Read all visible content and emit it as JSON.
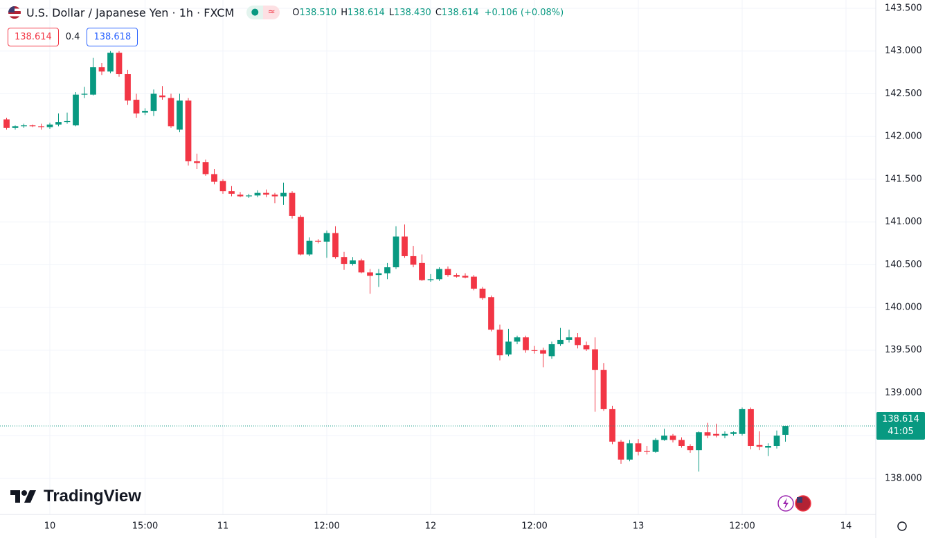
{
  "header": {
    "title": "U.S. Dollar / Japanese Yen · 1h · FXCM",
    "ohlc": [
      {
        "label": "O",
        "value": "138.510"
      },
      {
        "label": "H",
        "value": "138.614"
      },
      {
        "label": "L",
        "value": "138.430"
      },
      {
        "label": "C",
        "value": "138.614"
      }
    ],
    "change": "+0.106 (+0.08%)"
  },
  "quote": {
    "bid": "138.614",
    "spread": "0.4",
    "ask": "138.618"
  },
  "watermark": "TradingView",
  "chart_data": {
    "type": "candlestick",
    "up_color": "#089981",
    "down_color": "#f23645",
    "x": [
      -1,
      0,
      1,
      2,
      3,
      4,
      5,
      6,
      7,
      8,
      9,
      10,
      11,
      12,
      13,
      14,
      15,
      16,
      17,
      18,
      19,
      20,
      21,
      22,
      23,
      24,
      25,
      26,
      27,
      28,
      29,
      30,
      31,
      32,
      33,
      34,
      35,
      36,
      37,
      38,
      39,
      40,
      41,
      42,
      43,
      44,
      45,
      46,
      47,
      48,
      49,
      50,
      51,
      52,
      53,
      54,
      55,
      56,
      57,
      58,
      59,
      60,
      61,
      62,
      63,
      64,
      65,
      66,
      67,
      68,
      69,
      70,
      71,
      72,
      73,
      74,
      75,
      76,
      77,
      78,
      79,
      80,
      81,
      82,
      83,
      84,
      85,
      86,
      87,
      88,
      89
    ],
    "open": [
      142.2,
      142.1,
      142.12,
      142.13,
      142.12,
      142.11,
      142.14,
      142.17,
      142.13,
      142.49,
      142.49,
      142.81,
      142.76,
      142.98,
      142.73,
      142.43,
      142.28,
      142.3,
      142.48,
      142.45,
      142.08,
      142.42,
      141.71,
      141.7,
      141.56,
      141.48,
      141.36,
      141.32,
      141.3,
      141.31,
      141.34,
      141.32,
      141.3,
      141.34,
      141.06,
      140.62,
      140.78,
      140.77,
      140.87,
      140.59,
      140.51,
      140.55,
      140.41,
      140.38,
      140.4,
      140.47,
      140.83,
      140.6,
      140.52,
      140.32,
      140.33,
      140.45,
      140.38,
      140.37,
      140.36,
      140.22,
      140.12,
      139.74,
      139.45,
      139.6,
      139.65,
      139.5,
      139.5,
      139.43,
      139.57,
      139.62,
      139.65,
      139.56,
      139.51,
      139.27,
      138.81,
      138.43,
      138.22,
      138.41,
      138.32,
      138.31,
      138.45,
      138.5,
      138.45,
      138.38,
      138.33,
      138.54,
      138.52,
      138.5,
      138.52,
      138.52,
      138.81,
      138.39,
      138.36,
      138.38,
      138.51
    ],
    "high": [
      142.22,
      142.13,
      142.15,
      142.14,
      142.15,
      142.16,
      142.27,
      142.28,
      142.52,
      142.58,
      142.92,
      142.86,
      143.0,
      143.0,
      142.78,
      142.5,
      142.33,
      142.55,
      142.59,
      142.5,
      142.5,
      142.45,
      141.8,
      141.73,
      141.62,
      141.5,
      141.42,
      141.35,
      141.33,
      141.37,
      141.38,
      141.34,
      141.46,
      141.36,
      141.08,
      140.82,
      140.8,
      140.9,
      140.95,
      140.65,
      140.59,
      140.57,
      140.45,
      140.45,
      140.52,
      140.95,
      140.97,
      140.72,
      140.62,
      140.39,
      140.47,
      140.48,
      140.4,
      140.4,
      140.38,
      140.24,
      140.14,
      139.8,
      139.75,
      139.67,
      139.67,
      139.55,
      139.53,
      139.6,
      139.76,
      139.74,
      139.7,
      139.6,
      139.65,
      139.35,
      138.85,
      138.45,
      138.45,
      138.46,
      138.38,
      138.47,
      138.58,
      138.52,
      138.48,
      138.4,
      138.55,
      138.65,
      138.64,
      138.55,
      138.55,
      138.83,
      138.83,
      138.55,
      138.41,
      138.56,
      138.614
    ],
    "low": [
      142.08,
      142.08,
      142.1,
      142.11,
      142.08,
      142.09,
      142.12,
      142.15,
      142.12,
      142.45,
      142.48,
      142.72,
      142.74,
      142.7,
      142.37,
      142.22,
      142.25,
      142.24,
      142.43,
      142.1,
      142.05,
      141.66,
      141.62,
      141.54,
      141.44,
      141.33,
      141.3,
      141.29,
      141.28,
      141.29,
      141.29,
      141.22,
      141.2,
      141.04,
      140.61,
      140.6,
      140.75,
      140.58,
      140.57,
      140.44,
      140.49,
      140.4,
      140.16,
      140.24,
      140.33,
      140.45,
      140.58,
      140.47,
      140.31,
      140.3,
      140.31,
      140.36,
      140.35,
      140.34,
      140.2,
      140.09,
      139.72,
      139.38,
      139.43,
      139.57,
      139.47,
      139.46,
      139.3,
      139.4,
      139.55,
      139.59,
      139.52,
      139.49,
      138.78,
      138.79,
      138.4,
      138.17,
      138.2,
      138.27,
      138.28,
      138.3,
      138.44,
      138.42,
      138.36,
      138.3,
      138.08,
      138.47,
      138.48,
      138.47,
      138.5,
      138.5,
      138.34,
      138.33,
      138.26,
      138.35,
      138.43
    ],
    "close": [
      142.1,
      142.12,
      142.13,
      142.12,
      142.11,
      142.14,
      142.17,
      142.18,
      142.49,
      142.5,
      142.81,
      142.76,
      142.98,
      142.73,
      142.42,
      142.27,
      142.3,
      142.5,
      142.46,
      142.12,
      142.42,
      141.71,
      141.69,
      141.56,
      141.47,
      141.36,
      141.33,
      141.3,
      141.31,
      141.34,
      141.32,
      141.3,
      141.34,
      141.07,
      140.62,
      140.78,
      140.77,
      140.87,
      140.59,
      140.51,
      140.55,
      140.41,
      140.37,
      140.4,
      140.47,
      140.83,
      140.6,
      140.5,
      140.32,
      140.33,
      140.45,
      140.38,
      140.36,
      140.35,
      140.22,
      140.11,
      139.74,
      139.44,
      139.6,
      139.65,
      139.5,
      139.49,
      139.46,
      139.57,
      139.62,
      139.65,
      139.56,
      139.51,
      139.27,
      138.81,
      138.43,
      138.22,
      138.41,
      138.31,
      138.31,
      138.45,
      138.5,
      138.45,
      138.38,
      138.33,
      138.54,
      138.5,
      138.5,
      138.52,
      138.54,
      138.81,
      138.38,
      138.37,
      138.38,
      138.5,
      138.614
    ],
    "last_price": 138.614,
    "countdown": "41:05",
    "xlim": [
      -1.76,
      99.44
    ],
    "xticks": [
      {
        "value": 4,
        "label": "10"
      },
      {
        "value": 15,
        "label": "15:00"
      },
      {
        "value": 24,
        "label": "11"
      },
      {
        "value": 36,
        "label": "12:00"
      },
      {
        "value": 48,
        "label": "12"
      },
      {
        "value": 60,
        "label": "12:00"
      },
      {
        "value": 72,
        "label": "13"
      },
      {
        "value": 84,
        "label": "12:00"
      },
      {
        "value": 96,
        "label": "14"
      }
    ],
    "ylim": [
      137.578,
      143.597
    ],
    "yticks": [
      {
        "value": 138,
        "label": "138.000"
      },
      {
        "value": 138.5,
        "label": "138.500"
      },
      {
        "value": 139,
        "label": "139.000"
      },
      {
        "value": 139.5,
        "label": "139.500"
      },
      {
        "value": 140,
        "label": "140.000"
      },
      {
        "value": 140.5,
        "label": "140.500"
      },
      {
        "value": 141,
        "label": "141.000"
      },
      {
        "value": 141.5,
        "label": "141.500"
      },
      {
        "value": 142,
        "label": "142.000"
      },
      {
        "value": 142.5,
        "label": "142.500"
      },
      {
        "value": 143,
        "label": "143.000"
      },
      {
        "value": 143.5,
        "label": "143.500"
      }
    ],
    "grid": true
  }
}
